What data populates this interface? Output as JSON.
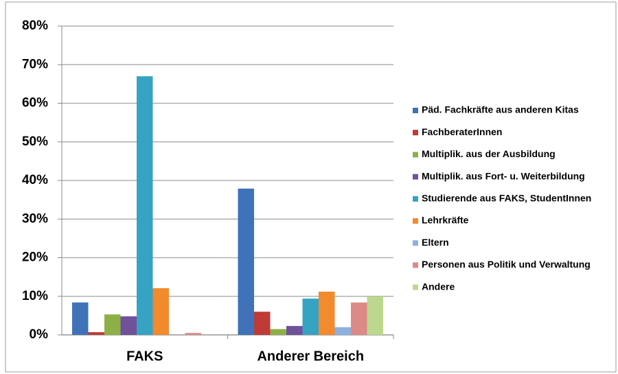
{
  "chart_data": {
    "type": "bar",
    "categories": [
      "FAKS",
      "Anderer Bereich"
    ],
    "series": [
      {
        "name": "Päd. Fachkräfte aus anderen Kitas",
        "color": "#3f72b8",
        "values": [
          8.4,
          37.9
        ]
      },
      {
        "name": "FachberaterInnen",
        "color": "#be3b37",
        "values": [
          0.7,
          6.0
        ]
      },
      {
        "name": "Multiplik. aus der Ausbildung",
        "color": "#8db046",
        "values": [
          5.3,
          1.5
        ]
      },
      {
        "name": "Multiplik. aus Fort- u. Weiterbildung",
        "color": "#70519a",
        "values": [
          4.8,
          2.3
        ]
      },
      {
        "name": "Studierende aus FAKS, StudentInnen",
        "color": "#37a3c3",
        "values": [
          67.0,
          9.4
        ]
      },
      {
        "name": "Lehrkräfte",
        "color": "#f28a2e",
        "values": [
          12.1,
          11.2
        ]
      },
      {
        "name": "Eltern",
        "color": "#8eb0dc",
        "values": [
          0,
          2.0
        ]
      },
      {
        "name": "Personen aus Politik und Verwaltung",
        "color": "#dc8a88",
        "values": [
          0.5,
          8.4
        ]
      },
      {
        "name": "Andere",
        "color": "#bcd88f",
        "values": [
          0,
          10.0
        ]
      }
    ],
    "ylim": [
      0,
      80
    ],
    "yticks": [
      {
        "value": 0,
        "label": "0%"
      },
      {
        "value": 10,
        "label": "10%"
      },
      {
        "value": 20,
        "label": "20%"
      },
      {
        "value": 30,
        "label": "30%"
      },
      {
        "value": 40,
        "label": "40%"
      },
      {
        "value": 50,
        "label": "50%"
      },
      {
        "value": 60,
        "label": "60%"
      },
      {
        "value": 70,
        "label": "70%"
      },
      {
        "value": 80,
        "label": "80%"
      }
    ],
    "grid": true,
    "legend": "right"
  }
}
